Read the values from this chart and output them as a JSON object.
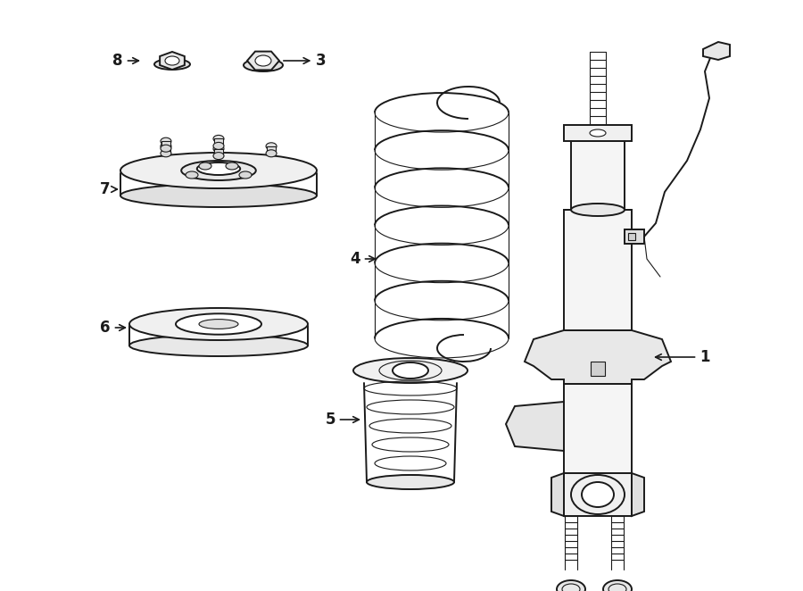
{
  "bg_color": "#ffffff",
  "line_color": "#1a1a1a",
  "lw": 1.4,
  "tlw": 0.8,
  "label_fontsize": 12,
  "label_fontweight": "bold"
}
